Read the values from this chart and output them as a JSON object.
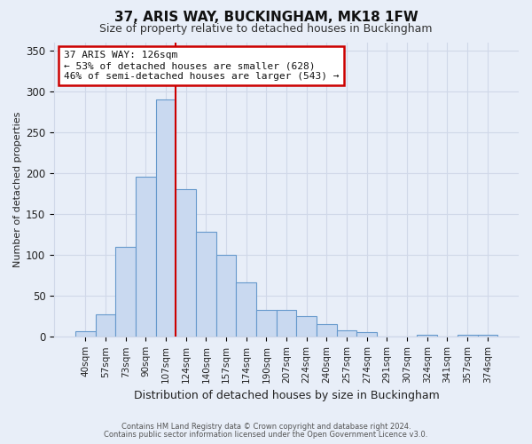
{
  "title": "37, ARIS WAY, BUCKINGHAM, MK18 1FW",
  "subtitle": "Size of property relative to detached houses in Buckingham",
  "xlabel": "Distribution of detached houses by size in Buckingham",
  "ylabel": "Number of detached properties",
  "bar_labels": [
    "40sqm",
    "57sqm",
    "73sqm",
    "90sqm",
    "107sqm",
    "124sqm",
    "140sqm",
    "157sqm",
    "174sqm",
    "190sqm",
    "207sqm",
    "224sqm",
    "240sqm",
    "257sqm",
    "274sqm",
    "291sqm",
    "307sqm",
    "324sqm",
    "341sqm",
    "357sqm",
    "374sqm"
  ],
  "bar_values": [
    7,
    28,
    110,
    196,
    290,
    180,
    128,
    100,
    66,
    33,
    33,
    25,
    16,
    8,
    6,
    0,
    0,
    2,
    0,
    2,
    2
  ],
  "bar_color": "#c9d9f0",
  "bar_edge_color": "#6699cc",
  "vline_color": "#cc0000",
  "vline_position": 4.5,
  "annotation_title": "37 ARIS WAY: 126sqm",
  "annotation_line1": "← 53% of detached houses are smaller (628)",
  "annotation_line2": "46% of semi-detached houses are larger (543) →",
  "annotation_box_color": "#ffffff",
  "annotation_box_edge": "#cc0000",
  "ylim": [
    0,
    360
  ],
  "yticks": [
    0,
    50,
    100,
    150,
    200,
    250,
    300,
    350
  ],
  "grid_color": "#d0d8e8",
  "bg_color": "#e8eef8",
  "plot_bg_color": "#e8eef8",
  "footnote1": "Contains HM Land Registry data © Crown copyright and database right 2024.",
  "footnote2": "Contains public sector information licensed under the Open Government Licence v3.0."
}
